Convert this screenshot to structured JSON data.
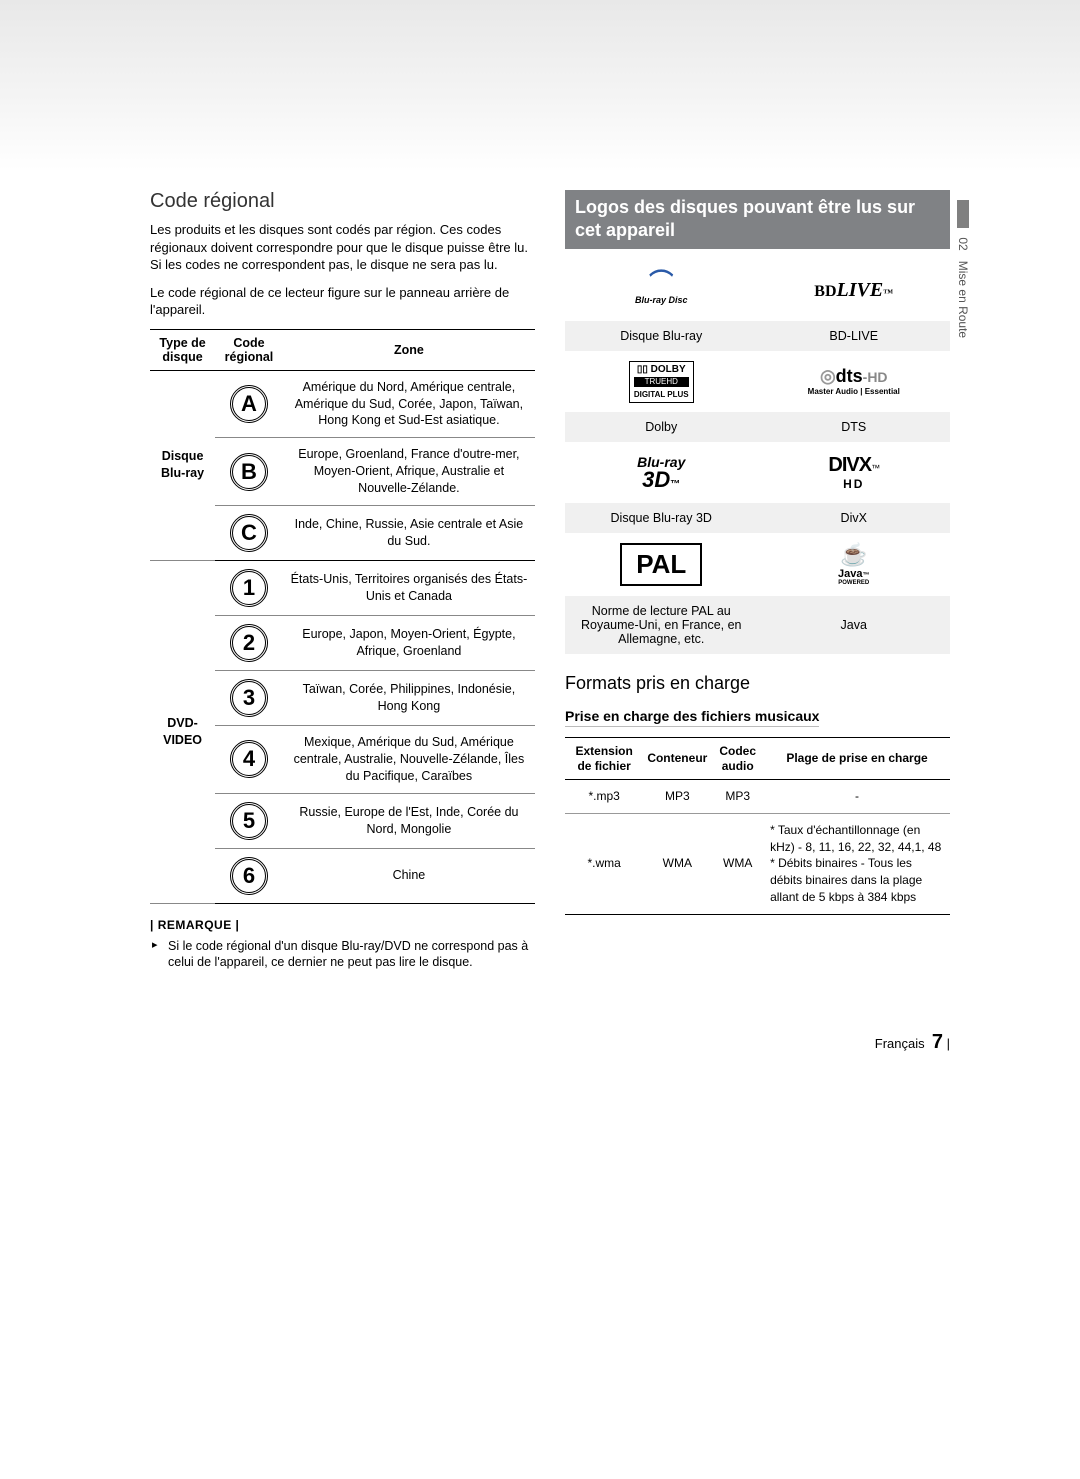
{
  "sideTab": {
    "num": "02",
    "label": "Mise en Route"
  },
  "left": {
    "heading": "Code régional",
    "para1": "Les produits et les disques sont codés par région. Ces codes régionaux doivent correspondre pour que le disque puisse être lu. Si les codes ne correspondent pas, le disque ne sera pas lu.",
    "para2": "Le code régional de ce lecteur figure sur le panneau arrière de l'appareil.",
    "table": {
      "headers": {
        "type": "Type de disque",
        "code": "Code régional",
        "zone": "Zone"
      },
      "bluray_label": "Disque Blu-ray",
      "dvd_label": "DVD-VIDEO",
      "bluray_rows": [
        {
          "code": "A",
          "zone": "Amérique du Nord, Amérique centrale, Amérique du Sud, Corée, Japon, Taïwan, Hong Kong et Sud-Est asiatique."
        },
        {
          "code": "B",
          "zone": "Europe, Groenland, France d'outre-mer, Moyen-Orient, Afrique, Australie et Nouvelle-Zélande."
        },
        {
          "code": "C",
          "zone": "Inde, Chine, Russie, Asie centrale et Asie du Sud."
        }
      ],
      "dvd_rows": [
        {
          "code": "1",
          "zone": "États-Unis, Territoires organisés des États-Unis et Canada"
        },
        {
          "code": "2",
          "zone": "Europe, Japon, Moyen-Orient, Égypte, Afrique, Groenland"
        },
        {
          "code": "3",
          "zone": "Taïwan, Corée, Philippines, Indonésie, Hong Kong"
        },
        {
          "code": "4",
          "zone": "Mexique, Amérique du Sud, Amérique centrale, Australie, Nouvelle-Zélande, Îles du Pacifique, Caraïbes"
        },
        {
          "code": "5",
          "zone": "Russie, Europe de l'Est, Inde, Corée du Nord, Mongolie"
        },
        {
          "code": "6",
          "zone": "Chine"
        }
      ]
    },
    "note_head": "| REMARQUE |",
    "note_body": "Si le code régional d'un disque Blu-ray/DVD ne correspond pas à celui de l'appareil, ce dernier ne peut pas lire le disque."
  },
  "right": {
    "banner": "Logos des disques pouvant être lus sur cet appareil",
    "logos": [
      {
        "left_label": "Disque Blu-ray",
        "right_label": "BD-LIVE"
      },
      {
        "left_label": "Dolby",
        "right_label": "DTS"
      },
      {
        "left_label": "Disque Blu-ray 3D",
        "right_label": "DivX"
      },
      {
        "left_label": "Norme de lecture PAL au Royaume-Uni, en France, en Allemagne, etc.",
        "right_label": "Java"
      }
    ],
    "logo_text": {
      "bluray": "Blu-ray Disc",
      "bdlive_bd": "BD",
      "bdlive_live": "LIVE",
      "bdlive_tm": "™",
      "dolby_brand": "DOLBY",
      "dolby_l2": "TRUEHD",
      "dolby_l3": "DIGITAL PLUS",
      "dts_main": "dts",
      "dts_hd": "-HD",
      "dts_sub": "Master Audio | Essential",
      "br3d_l1": "Blu-ray",
      "br3d_l2": "3D",
      "br3d_tm": "™",
      "divx_main": "DIVX",
      "divx_tm": "™",
      "divx_hd": "HD",
      "pal": "PAL",
      "java_cup": "☕",
      "java_label": "Java",
      "java_pow": "POWERED"
    },
    "formats_heading": "Formats pris en charge",
    "music_heading": "Prise en charge des fichiers musicaux",
    "music_table": {
      "headers": {
        "ext": "Extension de fichier",
        "cont": "Conteneur",
        "codec": "Codec audio",
        "range": "Plage de prise en charge"
      },
      "rows": [
        {
          "ext": "*.mp3",
          "cont": "MP3",
          "codec": "MP3",
          "range": "-"
        },
        {
          "ext": "*.wma",
          "cont": "WMA",
          "codec": "WMA",
          "range": "* Taux d'échantillonnage (en kHz) - 8, 11, 16, 22, 32, 44,1, 48\n* Débits binaires - Tous les débits binaires dans la plage allant de 5 kbps à 384 kbps"
        }
      ]
    }
  },
  "footer": {
    "lang": "Français",
    "page": "7",
    "bar": "|"
  }
}
